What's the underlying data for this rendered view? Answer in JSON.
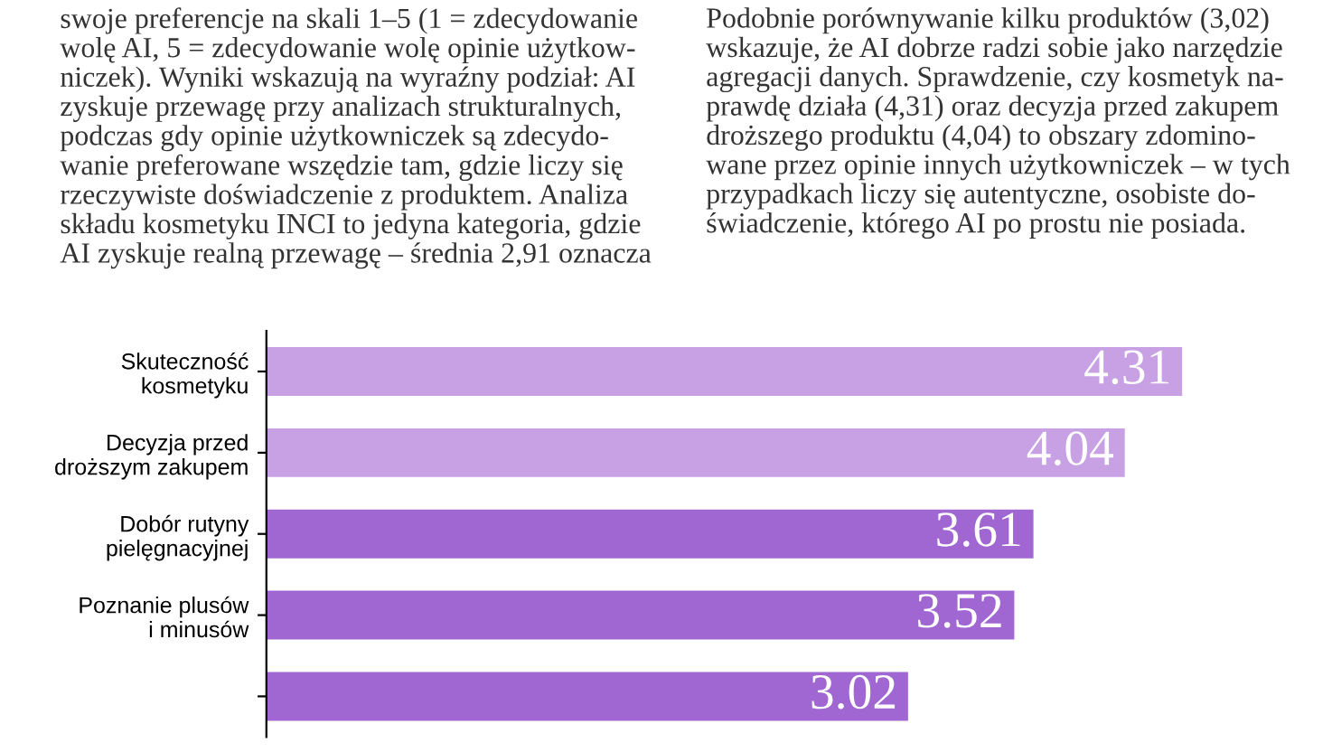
{
  "chart_data": {
    "type": "bar",
    "orientation": "horizontal",
    "annotations": [
      "swoje preferencje na skali 1–5 (1 = zdecydowanie\nwolę AI, 5 = zdecydowanie wolę opinie użytkow-\nniczek). Wyniki wskazują na wyraźny podział: AI\nzyskuje przewagę przy analizach strukturalnych,\npodczas gdy opinie użytkowniczek są zdecydo-\nwanie preferowane wszędzie tam, gdzie liczy się\nrzeczywiste doświadczenie z produktem. Analiza\nskładu kosmetyku INCI to jedyna kategoria, gdzie\nAI zyskuje realną przewagę – średnia 2,91 oznacza",
      "Podobnie porównywanie kilku produktów (3,02)\nwskazuje, że AI dobrze radzi sobie jako narzędzie\nagregacji danych. Sprawdzenie, czy kosmetyk na-\nprawdę działa (4,31) oraz decyzja przed zakupem\ndroższego produktu (4,04) to obszary zdomino-\nwane przez opinie innych użytkowniczek – w tych\nprzypadkach liczy się autentyczne, osobiste do-\nświadczenie, którego AI po prostu nie posiada."
    ],
    "categories": [
      "Skuteczność\nkosmetyku",
      "Decyzja przed\ndroższym zakupem",
      "Dobór rutyny\npielęgnacyjnej",
      "Poznanie plusów\ni minusów",
      null
    ],
    "values": [
      4.31,
      4.04,
      3.61,
      3.52,
      3.02
    ],
    "colors": [
      "#c8a0e4",
      "#c8a0e4",
      "#a066d2",
      "#a066d2",
      "#a066d2"
    ],
    "data_labels": true,
    "tick_labels": "y",
    "grid": false,
    "legend": false
  }
}
